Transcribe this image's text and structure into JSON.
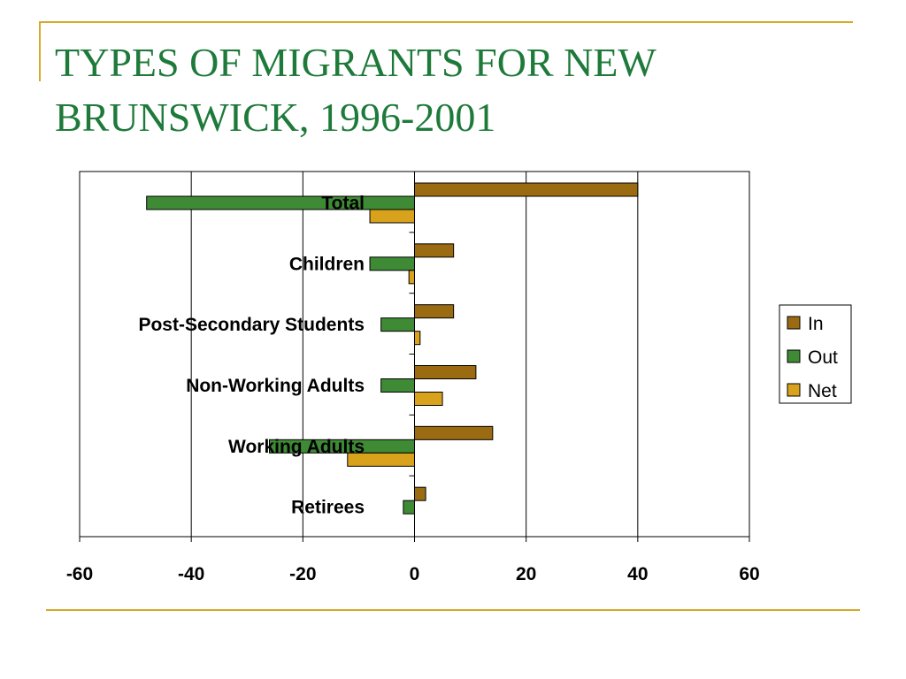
{
  "slide": {
    "title": "TYPES OF MIGRANTS FOR NEW BRUNSWICK, 1996-2001",
    "accent_color": "#d6a92b",
    "title_color": "#1e7a3a"
  },
  "chart_data": {
    "type": "bar",
    "orientation": "horizontal",
    "title": "",
    "xlabel": "",
    "ylabel": "",
    "categories": [
      "Total",
      "Children",
      "Post-Secondary Students",
      "Non-Working Adults",
      "Working Adults",
      "Retirees"
    ],
    "series": [
      {
        "name": "In",
        "color": "#9b6b12",
        "values": [
          40,
          7,
          7,
          11,
          14,
          2
        ]
      },
      {
        "name": "Out",
        "color": "#3f8a35",
        "values": [
          -48,
          -8,
          -6,
          -6,
          -26,
          -2
        ]
      },
      {
        "name": "Net",
        "color": "#d9a21c",
        "values": [
          -8,
          -1,
          1,
          5,
          -12,
          0
        ]
      }
    ],
    "xlim": [
      -60,
      60
    ],
    "xticks": [
      "-60",
      "-40",
      "-20",
      "0",
      "20",
      "40",
      "60"
    ],
    "grid": "vertical",
    "legend_position": "right"
  }
}
